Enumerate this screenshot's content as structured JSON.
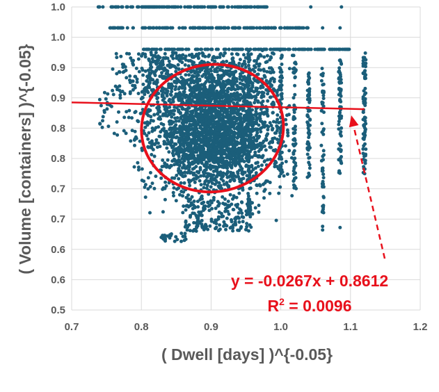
{
  "chart_data": {
    "type": "scatter",
    "xlabel": "( Dwell [days] )^{-0.05}",
    "ylabel": "( Volume [containers] )^{-0.05}",
    "xlim": [
      0.7,
      1.2
    ],
    "ylim": [
      0.5,
      1.0
    ],
    "x_ticks": [
      "0.7",
      "0.8",
      "0.9",
      "1.0",
      "1.1",
      "1.2"
    ],
    "y_ticks": [
      "0.5",
      "0.6",
      "0.6",
      "0.7",
      "0.7",
      "0.8",
      "0.8",
      "0.9",
      "0.9",
      "1.0",
      "1.0"
    ],
    "grid": true,
    "marker_color": "#1b5e7a",
    "trendline": {
      "slope": -0.0267,
      "intercept": 0.8612,
      "x_range": [
        0.7,
        1.12
      ],
      "color": "#e8101b"
    },
    "annotation": {
      "equation": "y = -0.0267x + 0.8612",
      "r2_prefix": "R",
      "r2_sup": "2",
      "r2_value": " = 0.0096",
      "color": "#e8101b"
    },
    "highlight_ellipse": {
      "cx": 0.902,
      "cy": 0.8,
      "rx": 0.102,
      "ry": 0.21,
      "color": "#e8101b"
    },
    "series": [
      {
        "x_band": [
          0.73,
          0.98
        ],
        "y": 1.0,
        "kind": "top-row"
      },
      {
        "x_band": [
          0.75,
          1.1
        ],
        "y": 0.9655,
        "kind": "row"
      },
      {
        "x_band": [
          0.8,
          1.12
        ],
        "y": 0.93,
        "kind": "row"
      },
      {
        "cluster_center": [
          0.9,
          0.8
        ],
        "kind": "dense-cluster"
      },
      {
        "columns_x": [
          0.955,
          1.0,
          1.02,
          1.04,
          1.06,
          1.085,
          1.12
        ],
        "kind": "vertical-columns"
      }
    ]
  }
}
